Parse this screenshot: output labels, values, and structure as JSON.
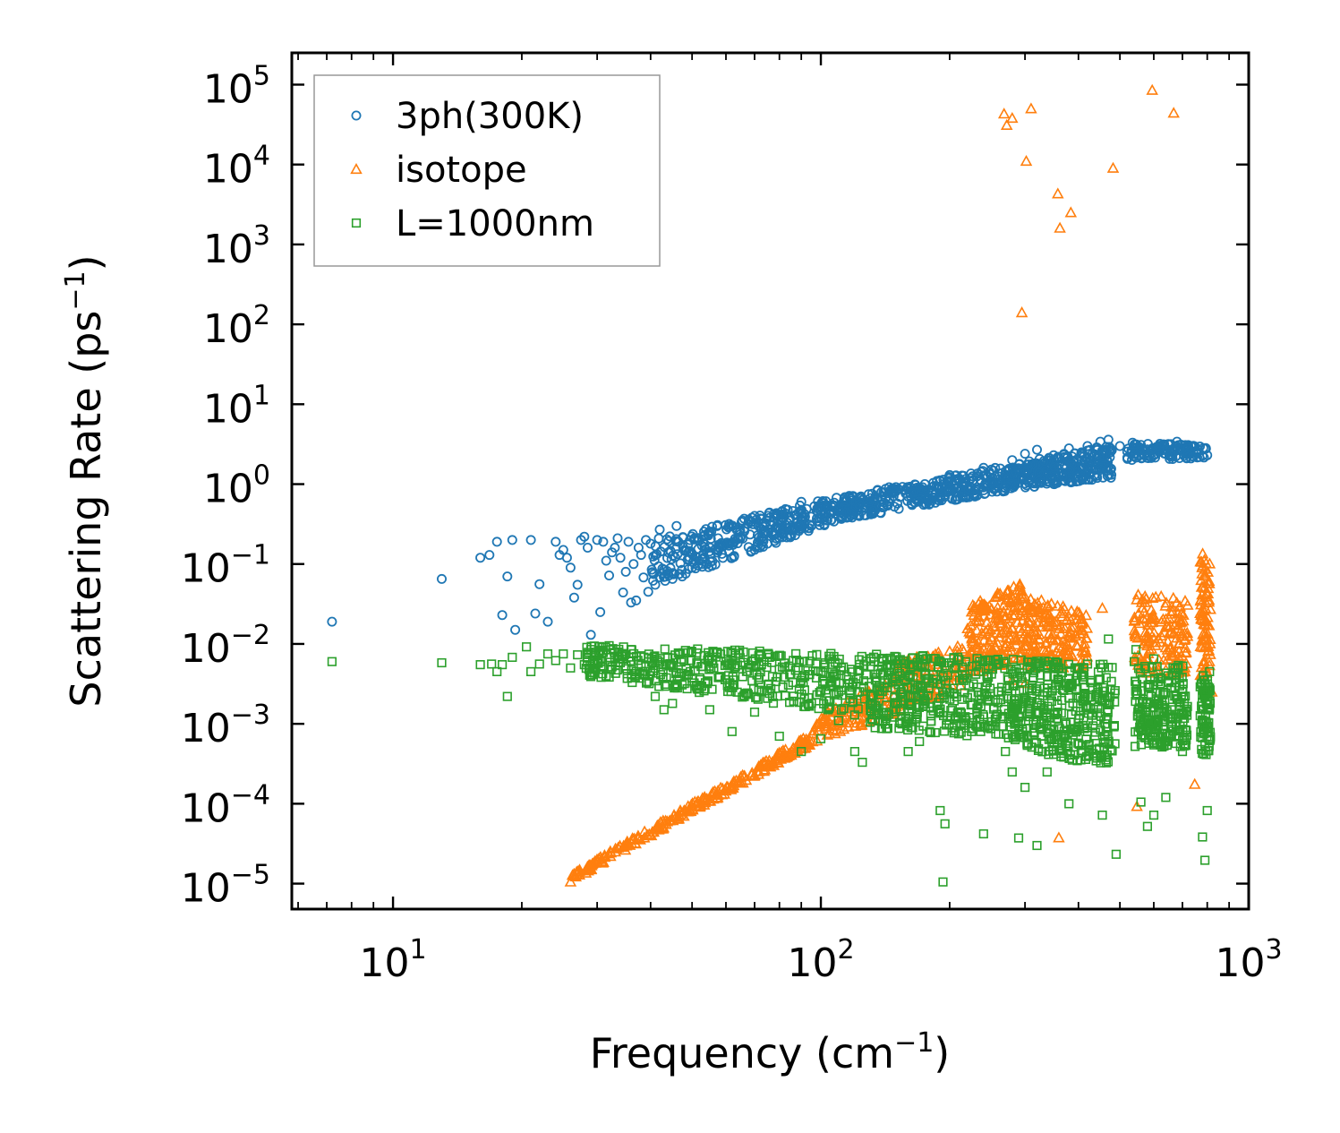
{
  "chart_data": {
    "type": "scatter",
    "title": "",
    "xscale": "log",
    "yscale": "log",
    "xlim": [
      5.8,
      1000
    ],
    "ylim": [
      4.8e-06,
      250000
    ],
    "xlabel": {
      "main": "Frequency (cm",
      "sup": "−1",
      "tail": ")"
    },
    "ylabel": {
      "main": "Scattering Rate (ps",
      "sup": "−1",
      "tail": ")"
    },
    "x_ticks": [
      {
        "value": 10,
        "base": "10",
        "exp": "1"
      },
      {
        "value": 100,
        "base": "10",
        "exp": "2"
      },
      {
        "value": 1000,
        "base": "10",
        "exp": "3"
      }
    ],
    "y_ticks": [
      {
        "value": 100000,
        "base": "10",
        "exp": "5"
      },
      {
        "value": 10000,
        "base": "10",
        "exp": "4"
      },
      {
        "value": 1000,
        "base": "10",
        "exp": "3"
      },
      {
        "value": 100,
        "base": "10",
        "exp": "2"
      },
      {
        "value": 10,
        "base": "10",
        "exp": "1"
      },
      {
        "value": 1,
        "base": "10",
        "exp": "0"
      },
      {
        "value": 0.1,
        "base": "10",
        "exp": "−1"
      },
      {
        "value": 0.01,
        "base": "10",
        "exp": "−2"
      },
      {
        "value": 0.001,
        "base": "10",
        "exp": "−3"
      },
      {
        "value": 0.0001,
        "base": "10",
        "exp": "−4"
      },
      {
        "value": 1e-05,
        "base": "10",
        "exp": "−5"
      }
    ],
    "legend_position": "top-left",
    "grid": false,
    "series": [
      {
        "name": "3ph(300K)",
        "marker": "circle",
        "color": "#1f77b4",
        "points": [
          [
            7.2,
            0.019
          ],
          [
            13,
            0.065
          ],
          [
            16,
            0.12
          ],
          [
            16.8,
            0.13
          ],
          [
            17.5,
            0.19
          ],
          [
            18,
            0.023
          ],
          [
            18.5,
            0.07
          ],
          [
            19,
            0.2
          ],
          [
            19.3,
            0.015
          ],
          [
            21,
            0.2
          ],
          [
            21.5,
            0.024
          ],
          [
            22,
            0.056
          ],
          [
            23,
            0.019
          ],
          [
            24,
            0.19
          ],
          [
            24.5,
            0.13
          ],
          [
            25,
            0.15
          ],
          [
            25.5,
            0.12
          ],
          [
            26,
            0.09
          ],
          [
            26.5,
            0.038
          ],
          [
            27,
            0.055
          ],
          [
            27.5,
            0.2
          ],
          [
            28,
            0.22
          ],
          [
            28.5,
            0.16
          ],
          [
            29,
            0.013
          ],
          [
            30,
            0.2
          ],
          [
            30.5,
            0.025
          ],
          [
            31,
            0.19
          ],
          [
            31.5,
            0.11
          ],
          [
            32,
            0.072
          ],
          [
            32.5,
            0.14
          ],
          [
            33,
            0.16
          ],
          [
            33.5,
            0.21
          ],
          [
            34,
            0.12
          ],
          [
            34.5,
            0.044
          ],
          [
            35,
            0.08
          ],
          [
            35.5,
            0.19
          ],
          [
            36,
            0.033
          ],
          [
            36.5,
            0.1
          ],
          [
            37,
            0.035
          ],
          [
            37.5,
            0.16
          ],
          [
            38,
            0.13
          ],
          [
            38.5,
            0.068
          ],
          [
            39,
            0.2
          ],
          [
            39.5,
            0.045
          ],
          [
            40,
            0.18
          ],
          [
            41,
            0.055
          ],
          [
            42,
            0.27
          ],
          [
            43,
            0.085
          ],
          [
            44,
            0.14
          ],
          [
            45,
            0.065
          ],
          [
            46,
            0.3
          ],
          [
            48,
            0.15
          ],
          [
            50,
            0.09
          ],
          [
            52,
            0.11
          ],
          [
            55,
            0.25
          ],
          [
            58,
            0.16
          ],
          [
            62,
            0.12
          ],
          [
            65,
            0.22
          ],
          [
            70,
            0.4
          ],
          [
            75,
            0.18
          ],
          [
            80,
            0.26
          ],
          [
            90,
            0.6
          ],
          [
            95,
            0.3
          ],
          [
            105,
            0.45
          ],
          [
            115,
            0.45
          ],
          [
            130,
            0.6
          ],
          [
            150,
            0.85
          ],
          [
            175,
            1.0
          ],
          [
            200,
            1.3
          ],
          [
            240,
            1.6
          ],
          [
            280,
            2.0
          ],
          [
            300,
            2.4
          ],
          [
            320,
            2.7
          ],
          [
            350,
            2.3
          ],
          [
            380,
            2.8
          ],
          [
            420,
            3.0
          ],
          [
            450,
            3.4
          ],
          [
            470,
            3.6
          ],
          [
            500,
            3.0
          ],
          [
            560,
            3.1
          ],
          [
            620,
            3.2
          ],
          [
            680,
            3.4
          ],
          [
            720,
            2.8
          ],
          [
            760,
            2.5
          ],
          [
            800,
            2.3
          ]
        ],
        "bands": [
          {
            "x_range": [
              40,
              110
            ],
            "y_lo": [
              0.05,
              0.35
            ],
            "y_hi": [
              0.2,
              0.7
            ],
            "count": 340
          },
          {
            "x_range": [
              110,
              300
            ],
            "y_lo": [
              0.35,
              0.9
            ],
            "y_hi": [
              0.7,
              1.9
            ],
            "count": 380
          },
          {
            "x_range": [
              300,
              480
            ],
            "y_lo": [
              0.9,
              1.2
            ],
            "y_hi": [
              1.9,
              3.2
            ],
            "count": 260
          },
          {
            "x_range": [
              520,
              800
            ],
            "y_lo": [
              2.0,
              2.1
            ],
            "y_hi": [
              3.4,
              3.0
            ],
            "count": 120
          }
        ]
      },
      {
        "name": "isotope",
        "marker": "triangle",
        "color": "#ff7f0e",
        "points": [
          [
            26,
            1.05e-05
          ],
          [
            268,
            43000
          ],
          [
            272,
            31000
          ],
          [
            280,
            38000
          ],
          [
            295,
            140
          ],
          [
            302,
            11000
          ],
          [
            310,
            50000
          ],
          [
            358,
            4300
          ],
          [
            362,
            1600
          ],
          [
            384,
            2500
          ],
          [
            482,
            9000
          ],
          [
            595,
            85000
          ],
          [
            668,
            44000
          ],
          [
            280,
            0.0035
          ],
          [
            300,
            0.0032
          ],
          [
            360,
            3.75e-05
          ],
          [
            455,
            0.028
          ],
          [
            548,
            9.25e-05
          ],
          [
            748,
            0.000175
          ],
          [
            820,
            0.0025
          ]
        ],
        "bands": [
          {
            "x_range": [
              26,
              95
            ],
            "y_lo": [
              1.05e-05,
              0.00055
            ],
            "y_hi": [
              1.3e-05,
              0.00075
            ],
            "count": 260
          },
          {
            "x_range": [
              95,
              150
            ],
            "y_lo": [
              0.00055,
              0.0014
            ],
            "y_hi": [
              0.0011,
              0.004
            ],
            "count": 120
          },
          {
            "x_range": [
              150,
              220
            ],
            "y_lo": [
              0.0014,
              0.003
            ],
            "y_hi": [
              0.006,
              0.01
            ],
            "count": 120
          },
          {
            "x_range": [
              220,
              300
            ],
            "y_lo": [
              0.004,
              0.006
            ],
            "y_hi": [
              0.03,
              0.06
            ],
            "count": 200
          },
          {
            "x_range": [
              300,
              420
            ],
            "y_lo": [
              0.005,
              0.005
            ],
            "y_hi": [
              0.04,
              0.025
            ],
            "count": 180
          },
          {
            "x_range": [
              540,
              720
            ],
            "y_lo": [
              0.004,
              0.004
            ],
            "y_hi": [
              0.045,
              0.035
            ],
            "count": 160
          },
          {
            "x_range": [
              770,
              815
            ],
            "y_lo": [
              0.004,
              0.004
            ],
            "y_hi": [
              0.15,
              0.12
            ],
            "count": 80
          }
        ]
      },
      {
        "name": "L=1000nm",
        "marker": "square",
        "color": "#2ca02c",
        "points": [
          [
            7.2,
            0.006
          ],
          [
            13,
            0.0058
          ],
          [
            16,
            0.0055
          ],
          [
            17,
            0.0056
          ],
          [
            17.5,
            0.0045
          ],
          [
            18,
            0.0055
          ],
          [
            18.5,
            0.0022
          ],
          [
            19,
            0.0068
          ],
          [
            20.5,
            0.0092
          ],
          [
            21,
            0.0045
          ],
          [
            22,
            0.0056
          ],
          [
            23,
            0.0075
          ],
          [
            24,
            0.0062
          ],
          [
            25,
            0.0075
          ],
          [
            26,
            0.005
          ],
          [
            27,
            0.0073
          ],
          [
            28,
            0.0055
          ],
          [
            29,
            0.0085
          ],
          [
            30,
            0.006
          ],
          [
            31,
            0.0078
          ],
          [
            32,
            0.0095
          ],
          [
            33,
            0.0067
          ],
          [
            34,
            0.0058
          ],
          [
            35,
            0.0049
          ],
          [
            36,
            0.0085
          ],
          [
            37,
            0.0045
          ],
          [
            38,
            0.0071
          ],
          [
            39,
            0.0052
          ],
          [
            40,
            0.0045
          ],
          [
            41,
            0.0022
          ],
          [
            43,
            0.0015
          ],
          [
            45,
            0.0018
          ],
          [
            48,
            0.0032
          ],
          [
            55,
            0.0015
          ],
          [
            62,
            0.0008
          ],
          [
            70,
            0.0014
          ],
          [
            80,
            0.0007
          ],
          [
            90,
            0.00045
          ],
          [
            100,
            0.00065
          ],
          [
            110,
            0.0011
          ],
          [
            120,
            0.00045
          ],
          [
            125,
            0.00033
          ],
          [
            160,
            0.00045
          ],
          [
            170,
            0.0006
          ],
          [
            190,
            8.2e-05
          ],
          [
            195,
            5.6e-05
          ],
          [
            193,
            1.05e-05
          ],
          [
            210,
            0.00075
          ],
          [
            240,
            4.2e-05
          ],
          [
            270,
            0.00045
          ],
          [
            280,
            0.00025
          ],
          [
            290,
            3.73e-05
          ],
          [
            300,
            0.00016
          ],
          [
            320,
            3e-05
          ],
          [
            338,
            0.00025
          ],
          [
            350,
            0.0055
          ],
          [
            360,
            0.0035
          ],
          [
            380,
            0.0001
          ],
          [
            410,
            0.00095
          ],
          [
            455,
            7.2e-05
          ],
          [
            490,
            2.33e-05
          ],
          [
            470,
            0.0018
          ],
          [
            540,
            0.006
          ],
          [
            560,
            0.000105
          ],
          [
            580,
            5.2e-05
          ],
          [
            600,
            7.2e-05
          ],
          [
            640,
            0.00012
          ],
          [
            660,
            0.0015
          ],
          [
            700,
            0.00045
          ],
          [
            780,
            3.83e-05
          ],
          [
            790,
            1.96e-05
          ],
          [
            800,
            8.2e-05
          ],
          [
            810,
            0.0045
          ],
          [
            470,
            0.0115
          ],
          [
            545,
            0.0085
          ],
          [
            600,
            0.0065
          ]
        ],
        "bands": [
          {
            "x_range": [
              28,
              130
            ],
            "y_lo": [
              0.004,
              0.0012
            ],
            "y_hi": [
              0.0095,
              0.0075
            ],
            "count": 420
          },
          {
            "x_range": [
              130,
              300
            ],
            "y_lo": [
              0.0009,
              0.0006
            ],
            "y_hi": [
              0.0075,
              0.0065
            ],
            "count": 420
          },
          {
            "x_range": [
              300,
              490
            ],
            "y_lo": [
              0.0004,
              0.0003
            ],
            "y_hi": [
              0.0065,
              0.0055
            ],
            "count": 320
          },
          {
            "x_range": [
              540,
              720
            ],
            "y_lo": [
              0.0005,
              0.0005
            ],
            "y_hi": [
              0.0055,
              0.0055
            ],
            "count": 220
          },
          {
            "x_range": [
              770,
              815
            ],
            "y_lo": [
              0.0004,
              0.0004
            ],
            "y_hi": [
              0.004,
              0.004
            ],
            "count": 80
          }
        ]
      }
    ]
  }
}
